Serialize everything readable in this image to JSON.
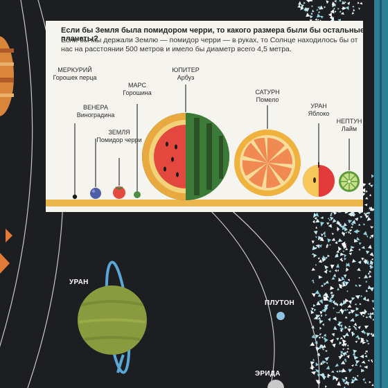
{
  "card": {
    "title": "Если бы Земля была помидором черри, то какого размера были бы остальные планеты?",
    "intro": "Если бы мы держали Землю — помидор черри — в руках, то Солнце находилось бы от нас на расстоянии 500 метров и имело бы диаметр всего 4,5 метра."
  },
  "planets": [
    {
      "name": "МЕРКУРИЙ",
      "fruit": "Горошек перца",
      "icon": "peppercorn-icon"
    },
    {
      "name": "ВЕНЕРА",
      "fruit": "Виноградина",
      "icon": "grape-icon"
    },
    {
      "name": "ЗЕМЛЯ",
      "fruit": "Помидор черри",
      "icon": "cherry-tomato-icon"
    },
    {
      "name": "МАРС",
      "fruit": "Горошина",
      "icon": "pea-icon"
    },
    {
      "name": "ЮПИТЕР",
      "fruit": "Арбуз",
      "icon": "watermelon-icon"
    },
    {
      "name": "САТУРН",
      "fruit": "Помело",
      "icon": "pomelo-icon"
    },
    {
      "name": "УРАН",
      "fruit": "Яблоко",
      "icon": "apple-icon"
    },
    {
      "name": "НЕПТУН",
      "fruit": "Лайм",
      "icon": "lime-icon"
    }
  ],
  "map_labels": {
    "uranus": "УРАН",
    "pluto": "ПЛУТОН",
    "eris": "ЭРИДА"
  },
  "colors": {
    "background": "#1d1e21",
    "card": "#f6f4ee",
    "ground_strip": "#eab54a",
    "uranus": "#8a9a3e",
    "orbit_ring": "#5aa7d6",
    "pluto": "#8fc3df"
  }
}
